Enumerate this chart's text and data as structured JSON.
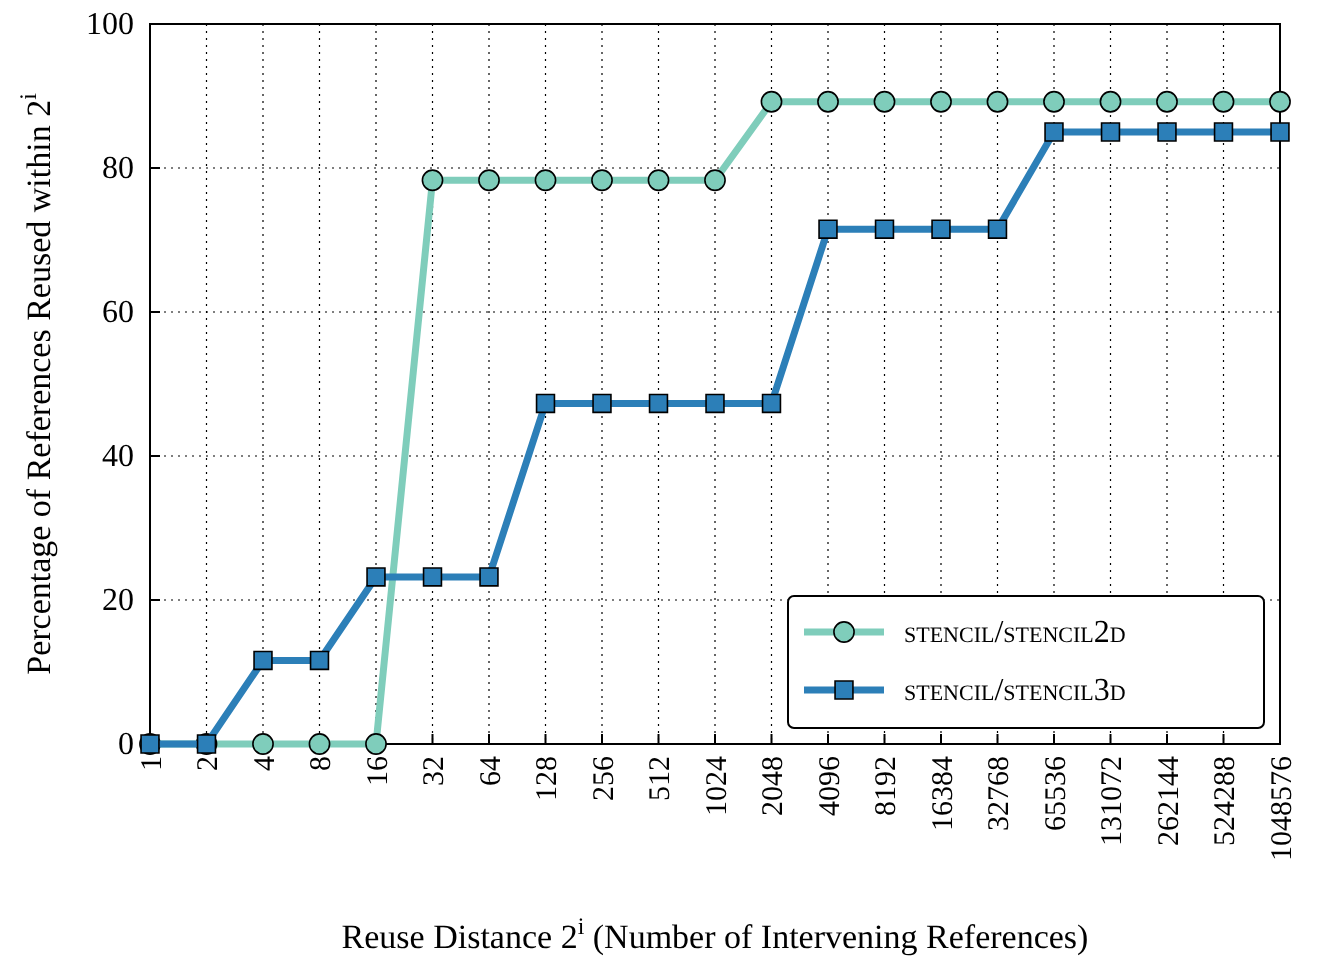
{
  "chart_data": {
    "type": "line",
    "xlabel": "Reuse Distance 2$^{i}$ (Number of Intervening References)",
    "ylabel": "Percentage of References Reused within 2$^{i}$",
    "categories": [
      "1",
      "2",
      "4",
      "8",
      "16",
      "32",
      "64",
      "128",
      "256",
      "512",
      "1024",
      "2048",
      "4096",
      "8192",
      "16384",
      "32768",
      "65536",
      "131072",
      "262144",
      "524288",
      "1048576"
    ],
    "series": [
      {
        "name": "stencil/stencil2d",
        "color": "#7fcdbb",
        "marker": "circle",
        "values": [
          0,
          0,
          0,
          0,
          0,
          78.3,
          78.3,
          78.3,
          78.3,
          78.3,
          78.3,
          89.2,
          89.2,
          89.2,
          89.2,
          89.2,
          89.2,
          89.2,
          89.2,
          89.2,
          89.2
        ]
      },
      {
        "name": "stencil/stencil3d",
        "color": "#2c7fb8",
        "marker": "square",
        "values": [
          0,
          0,
          11.6,
          11.6,
          23.2,
          23.2,
          23.2,
          47.3,
          47.3,
          47.3,
          47.3,
          47.3,
          71.5,
          71.5,
          71.5,
          71.5,
          85,
          85,
          85,
          85,
          85
        ]
      }
    ],
    "ylim": [
      0,
      100
    ],
    "yticks": [
      0,
      20,
      40,
      60,
      80,
      100
    ],
    "grid": true,
    "legend": "bottom right",
    "line_style": "solid"
  }
}
